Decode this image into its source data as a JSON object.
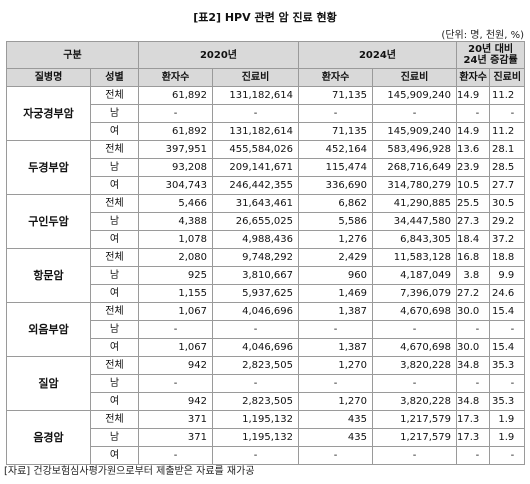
{
  "title": "[표2] HPV 관련 암 진료 현황",
  "unit": "(단위: 명, 천원, %)",
  "header": {
    "group": "구분",
    "year1": "2020년",
    "year2": "2024년",
    "increase_line1": "20년 대비",
    "increase_line2": "24년 증감률",
    "disease": "질병명",
    "sex": "성별",
    "patients": "환자수",
    "cost": "진료비"
  },
  "rows": [
    {
      "disease": "자궁경부암",
      "sub": [
        {
          "sex": "전체",
          "p2020": "61,892",
          "c2020": "131,182,614",
          "p2024": "71,135",
          "c2024": "145,909,240",
          "rp": "14.9",
          "rc": "11.2"
        },
        {
          "sex": "남",
          "p2020": "-",
          "c2020": "-",
          "p2024": "-",
          "c2024": "-",
          "rp": "-",
          "rc": "-"
        },
        {
          "sex": "여",
          "p2020": "61,892",
          "c2020": "131,182,614",
          "p2024": "71,135",
          "c2024": "145,909,240",
          "rp": "14.9",
          "rc": "11.2"
        }
      ]
    },
    {
      "disease": "두경부암",
      "sub": [
        {
          "sex": "전체",
          "p2020": "397,951",
          "c2020": "455,584,026",
          "p2024": "452,164",
          "c2024": "583,496,928",
          "rp": "13.6",
          "rc": "28.1"
        },
        {
          "sex": "남",
          "p2020": "93,208",
          "c2020": "209,141,671",
          "p2024": "115,474",
          "c2024": "268,716,649",
          "rp": "23.9",
          "rc": "28.5"
        },
        {
          "sex": "여",
          "p2020": "304,743",
          "c2020": "246,442,355",
          "p2024": "336,690",
          "c2024": "314,780,279",
          "rp": "10.5",
          "rc": "27.7"
        }
      ]
    },
    {
      "disease": "구인두암",
      "sub": [
        {
          "sex": "전체",
          "p2020": "5,466",
          "c2020": "31,643,461",
          "p2024": "6,862",
          "c2024": "41,290,885",
          "rp": "25.5",
          "rc": "30.5"
        },
        {
          "sex": "남",
          "p2020": "4,388",
          "c2020": "26,655,025",
          "p2024": "5,586",
          "c2024": "34,447,580",
          "rp": "27.3",
          "rc": "29.2"
        },
        {
          "sex": "여",
          "p2020": "1,078",
          "c2020": "4,988,436",
          "p2024": "1,276",
          "c2024": "6,843,305",
          "rp": "18.4",
          "rc": "37.2"
        }
      ]
    },
    {
      "disease": "항문암",
      "sub": [
        {
          "sex": "전체",
          "p2020": "2,080",
          "c2020": "9,748,292",
          "p2024": "2,429",
          "c2024": "11,583,128",
          "rp": "16.8",
          "rc": "18.8"
        },
        {
          "sex": "남",
          "p2020": "925",
          "c2020": "3,810,667",
          "p2024": "960",
          "c2024": "4,187,049",
          "rp": "3.8",
          "rc": "9.9"
        },
        {
          "sex": "여",
          "p2020": "1,155",
          "c2020": "5,937,625",
          "p2024": "1,469",
          "c2024": "7,396,079",
          "rp": "27.2",
          "rc": "24.6"
        }
      ]
    },
    {
      "disease": "외음부암",
      "sub": [
        {
          "sex": "전체",
          "p2020": "1,067",
          "c2020": "4,046,696",
          "p2024": "1,387",
          "c2024": "4,670,698",
          "rp": "30.0",
          "rc": "15.4"
        },
        {
          "sex": "남",
          "p2020": "-",
          "c2020": "-",
          "p2024": "-",
          "c2024": "-",
          "rp": "-",
          "rc": "-"
        },
        {
          "sex": "여",
          "p2020": "1,067",
          "c2020": "4,046,696",
          "p2024": "1,387",
          "c2024": "4,670,698",
          "rp": "30.0",
          "rc": "15.4"
        }
      ]
    },
    {
      "disease": "질암",
      "sub": [
        {
          "sex": "전체",
          "p2020": "942",
          "c2020": "2,823,505",
          "p2024": "1,270",
          "c2024": "3,820,228",
          "rp": "34.8",
          "rc": "35.3"
        },
        {
          "sex": "남",
          "p2020": "-",
          "c2020": "-",
          "p2024": "-",
          "c2024": "-",
          "rp": "-",
          "rc": "-"
        },
        {
          "sex": "여",
          "p2020": "942",
          "c2020": "2,823,505",
          "p2024": "1,270",
          "c2024": "3,820,228",
          "rp": "34.8",
          "rc": "35.3"
        }
      ]
    },
    {
      "disease": "음경암",
      "sub": [
        {
          "sex": "전체",
          "p2020": "371",
          "c2020": "1,195,132",
          "p2024": "435",
          "c2024": "1,217,579",
          "rp": "17.3",
          "rc": "1.9"
        },
        {
          "sex": "남",
          "p2020": "371",
          "c2020": "1,195,132",
          "p2024": "435",
          "c2024": "1,217,579",
          "rp": "17.3",
          "rc": "1.9"
        },
        {
          "sex": "여",
          "p2020": "-",
          "c2020": "-",
          "p2024": "-",
          "c2024": "-",
          "rp": "-",
          "rc": "-"
        }
      ]
    }
  ],
  "footnote": "[자료] 건강보험심사평가원으로부터 제출받은 자료를 재가공"
}
